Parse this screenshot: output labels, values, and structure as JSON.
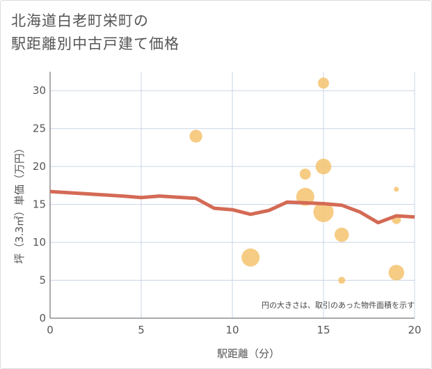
{
  "chart_data": {
    "type": "scatter",
    "title_line1": "北海道白老町栄町の",
    "title_line2": "駅距離別中古戸建て価格",
    "xlabel": "駅距離（分）",
    "ylabel": "坪（3.3㎡）単価（万円）",
    "xlim": [
      0,
      20
    ],
    "ylim": [
      0,
      32.5
    ],
    "x_ticks": [
      0,
      5,
      10,
      15,
      20
    ],
    "y_ticks": [
      0,
      5,
      10,
      15,
      20,
      25,
      30
    ],
    "note": "円の大きさは、取引のあった物件面積を示す",
    "point_color": "#f5c36e",
    "line_color": "#d46a55",
    "points": [
      {
        "x": 8,
        "y": 24,
        "size": 2
      },
      {
        "x": 11,
        "y": 8,
        "size": 4
      },
      {
        "x": 14,
        "y": 19,
        "size": 1.5
      },
      {
        "x": 14,
        "y": 16,
        "size": 4
      },
      {
        "x": 15,
        "y": 31,
        "size": 1.5
      },
      {
        "x": 15,
        "y": 20,
        "size": 3
      },
      {
        "x": 15,
        "y": 14,
        "size": 5
      },
      {
        "x": 16,
        "y": 11,
        "size": 2.5
      },
      {
        "x": 16,
        "y": 5,
        "size": 0.6
      },
      {
        "x": 19,
        "y": 17,
        "size": 0.3
      },
      {
        "x": 19,
        "y": 13,
        "size": 1
      },
      {
        "x": 19,
        "y": 6,
        "size": 3
      }
    ],
    "trend": [
      {
        "x": 0,
        "y": 16.7
      },
      {
        "x": 1,
        "y": 16.55
      },
      {
        "x": 2,
        "y": 16.4
      },
      {
        "x": 3,
        "y": 16.25
      },
      {
        "x": 4,
        "y": 16.1
      },
      {
        "x": 5,
        "y": 15.9
      },
      {
        "x": 6,
        "y": 16.1
      },
      {
        "x": 7,
        "y": 15.95
      },
      {
        "x": 8,
        "y": 15.8
      },
      {
        "x": 9,
        "y": 14.5
      },
      {
        "x": 10,
        "y": 14.3
      },
      {
        "x": 11,
        "y": 13.7
      },
      {
        "x": 12,
        "y": 14.2
      },
      {
        "x": 13,
        "y": 15.3
      },
      {
        "x": 14,
        "y": 15.2
      },
      {
        "x": 15,
        "y": 15.1
      },
      {
        "x": 16,
        "y": 14.9
      },
      {
        "x": 17,
        "y": 14.0
      },
      {
        "x": 18,
        "y": 12.6
      },
      {
        "x": 19,
        "y": 13.5
      },
      {
        "x": 20,
        "y": 13.35
      }
    ]
  }
}
